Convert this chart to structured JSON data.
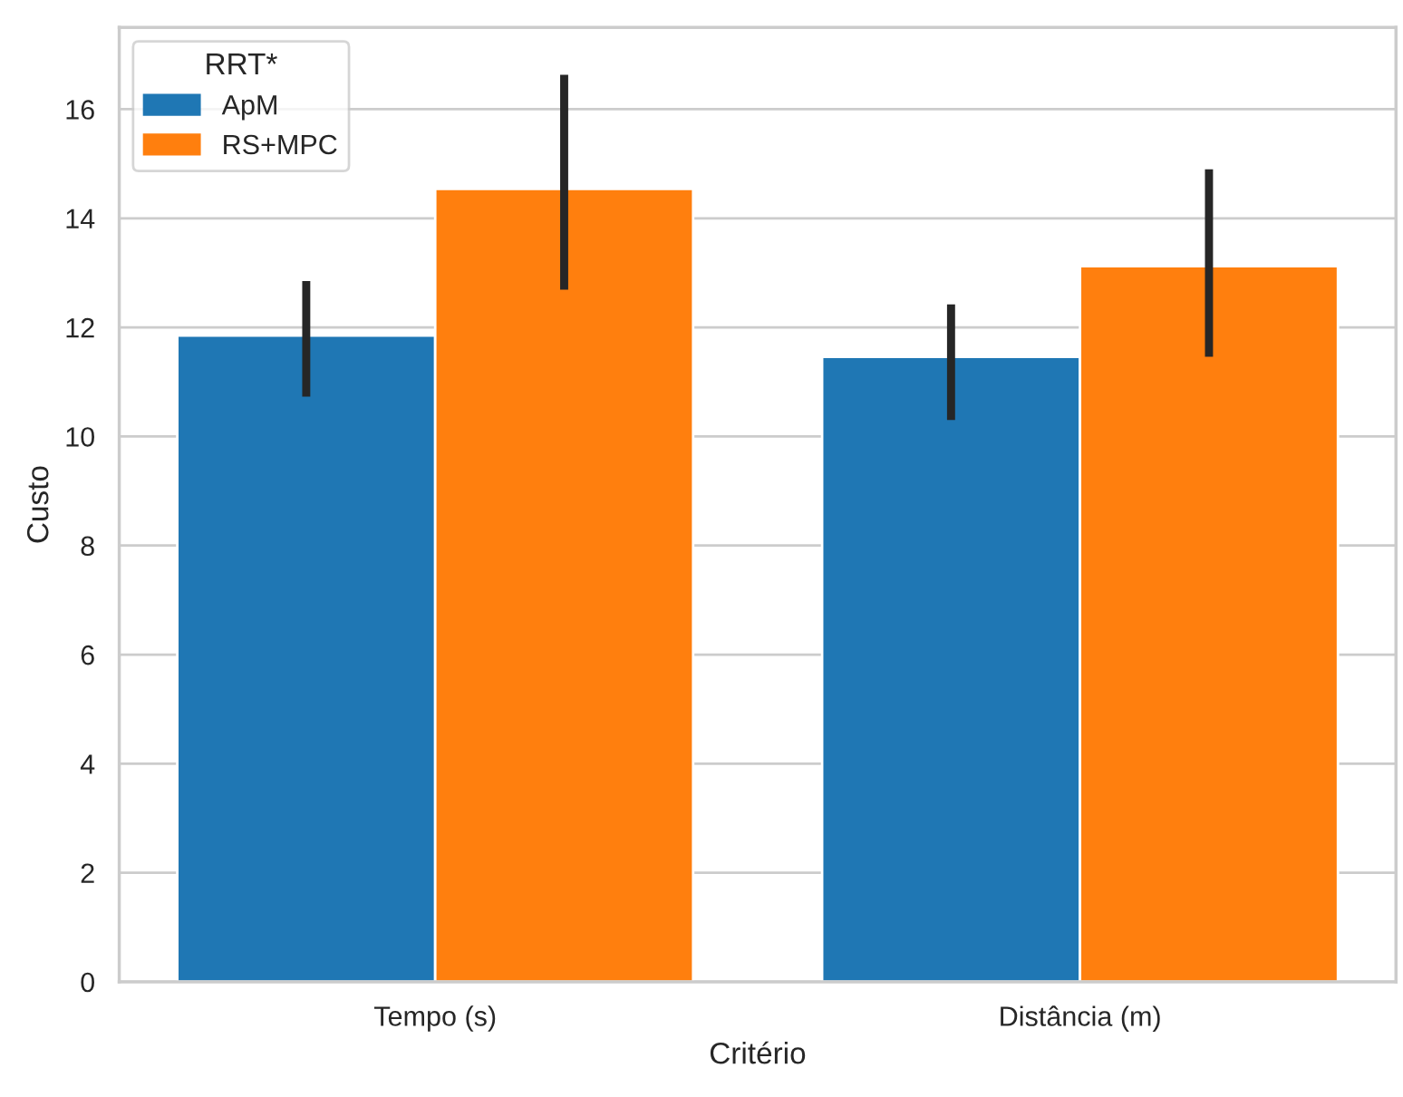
{
  "chart_data": {
    "type": "bar",
    "xlabel": "Critério",
    "ylabel": "Custo",
    "legend_title": "RRT*",
    "categories": [
      "Tempo (s)",
      "Distância (m)"
    ],
    "series": [
      {
        "name": "ApM",
        "color": "#1f77b4",
        "values": [
          11.85,
          11.46
        ],
        "errors": [
          [
            10.73,
            12.85
          ],
          [
            10.3,
            12.42
          ]
        ]
      },
      {
        "name": "RS+MPC",
        "color": "#ff7f0e",
        "values": [
          14.54,
          13.12
        ],
        "errors": [
          [
            12.69,
            16.63
          ],
          [
            11.46,
            14.9
          ]
        ]
      }
    ],
    "ylim": [
      0,
      17.5
    ],
    "yticks": [
      0,
      2,
      4,
      6,
      8,
      10,
      12,
      14,
      16
    ],
    "grid": "y",
    "legend": "top left"
  }
}
